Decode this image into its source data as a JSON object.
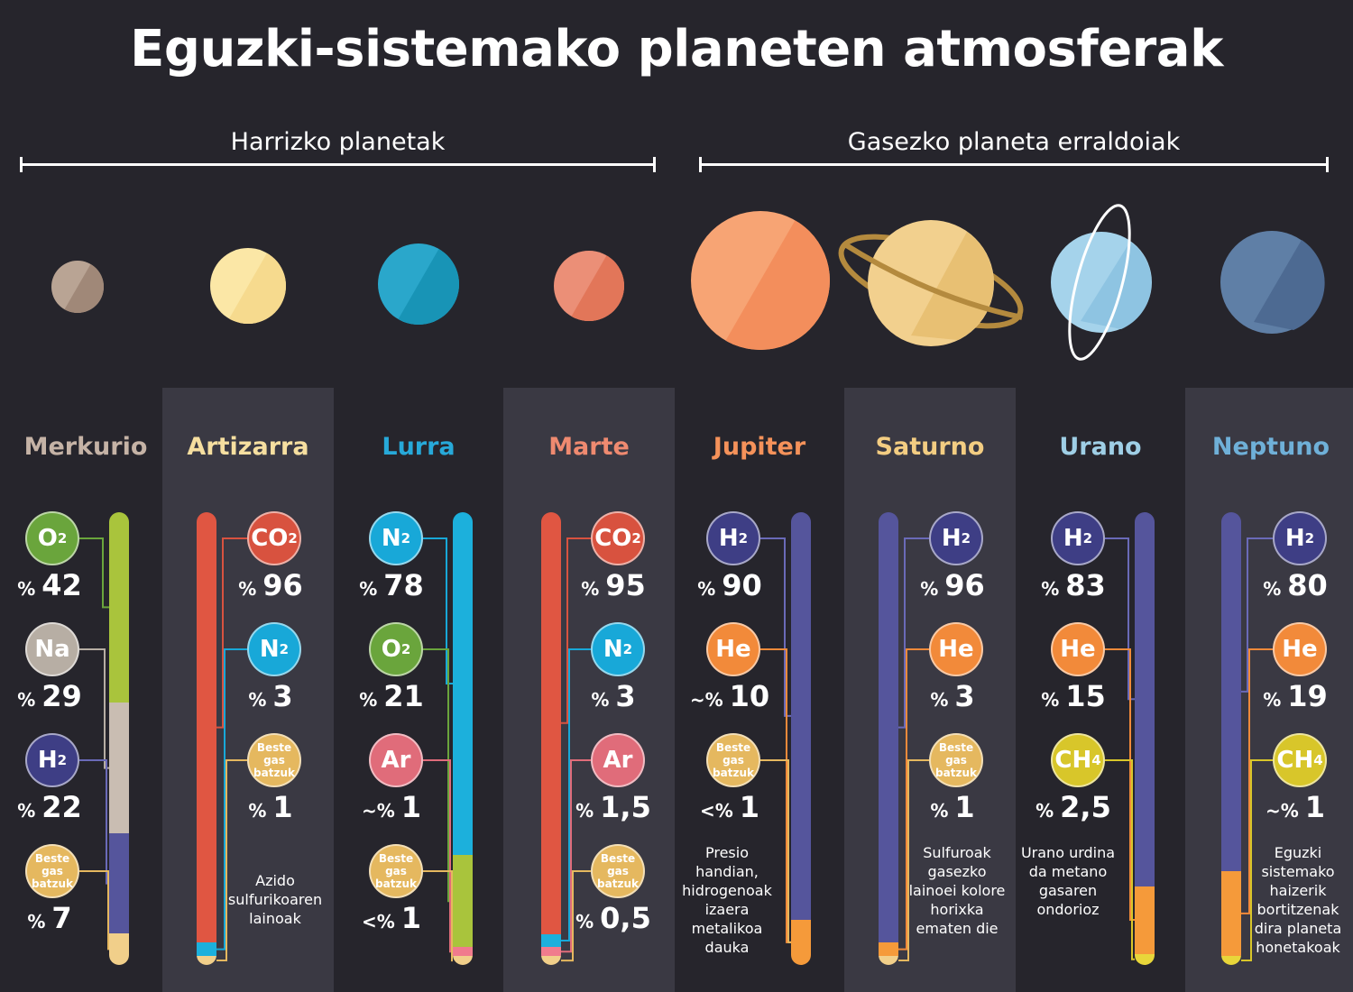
{
  "title": "Eguzki-sistemako planeten atmosferak",
  "groups": {
    "rocky": "Harrizko planetak",
    "gas": "Gasezko planeta erraldoiak"
  },
  "colors": {
    "background": "#26252c",
    "band": "#3a3943",
    "O2": "#6aa53c",
    "Na": "#b7aea4",
    "H2": "#3e3e85",
    "He": "#f28a3a",
    "CO2": "#d8523f",
    "N2": "#18a8d8",
    "Ar": "#e06c7a",
    "CH4": "#d8c62a",
    "other": "#e5b85f"
  },
  "planets": [
    {
      "name": "Merkurio",
      "name_color": "#c5b3a6",
      "gases": [
        {
          "symbol": "O",
          "sub": "2",
          "type": "O2",
          "pct": "42",
          "prefix": "%"
        },
        {
          "symbol": "Na",
          "sub": "",
          "type": "Na",
          "pct": "29",
          "prefix": "%"
        },
        {
          "symbol": "H",
          "sub": "2",
          "type": "H2",
          "pct": "22",
          "prefix": "%"
        },
        {
          "symbol": "Beste gas batzuk",
          "sub": "",
          "type": "other",
          "pct": "7",
          "prefix": "%"
        }
      ],
      "bar": [
        {
          "color": "#a9c43c",
          "v": 42
        },
        {
          "color": "#c9bdb2",
          "v": 29
        },
        {
          "color": "#55559c",
          "v": 22
        },
        {
          "color": "#f1cf8a",
          "v": 7
        }
      ],
      "note": ""
    },
    {
      "name": "Artizarra",
      "name_color": "#f6dfa0",
      "gases": [
        {
          "symbol": "CO",
          "sub": "2",
          "type": "CO2",
          "pct": "96",
          "prefix": "%"
        },
        {
          "symbol": "N",
          "sub": "2",
          "type": "N2",
          "pct": "3",
          "prefix": "%"
        },
        {
          "symbol": "Beste gas batzuk",
          "sub": "",
          "type": "other",
          "pct": "1",
          "prefix": "%"
        }
      ],
      "bar": [
        {
          "color": "#e05642",
          "v": 96
        },
        {
          "color": "#1cb0dc",
          "v": 3
        },
        {
          "color": "#f1cf8a",
          "v": 1
        }
      ],
      "note": "Azido sulfurikoaren lainoak"
    },
    {
      "name": "Lurra",
      "name_color": "#27a9d9",
      "gases": [
        {
          "symbol": "N",
          "sub": "2",
          "type": "N2",
          "pct": "78",
          "prefix": "%"
        },
        {
          "symbol": "O",
          "sub": "2",
          "type": "O2",
          "pct": "21",
          "prefix": "%"
        },
        {
          "symbol": "Ar",
          "sub": "",
          "type": "Ar",
          "pct": "1",
          "prefix": "~%"
        },
        {
          "symbol": "Beste gas batzuk",
          "sub": "",
          "type": "other",
          "pct": "1",
          "prefix": "<%"
        }
      ],
      "bar": [
        {
          "color": "#1cb0dc",
          "v": 78
        },
        {
          "color": "#a9c43c",
          "v": 21
        },
        {
          "color": "#f07b8d",
          "v": 1
        },
        {
          "color": "#f1cf8a",
          "v": 1
        }
      ],
      "note": ""
    },
    {
      "name": "Marte",
      "name_color": "#ef8a70",
      "gases": [
        {
          "symbol": "CO",
          "sub": "2",
          "type": "CO2",
          "pct": "95",
          "prefix": "%"
        },
        {
          "symbol": "N",
          "sub": "2",
          "type": "N2",
          "pct": "3",
          "prefix": "%"
        },
        {
          "symbol": "Ar",
          "sub": "",
          "type": "Ar",
          "pct": "1,5",
          "prefix": "%"
        },
        {
          "symbol": "Beste gas batzuk",
          "sub": "",
          "type": "other",
          "pct": "0,5",
          "prefix": "%"
        }
      ],
      "bar": [
        {
          "color": "#e05642",
          "v": 95
        },
        {
          "color": "#1cb0dc",
          "v": 3
        },
        {
          "color": "#f07b8d",
          "v": 1.5
        },
        {
          "color": "#f1cf8a",
          "v": 0.5
        }
      ],
      "note": ""
    },
    {
      "name": "Jupiter",
      "name_color": "#f5925a",
      "gases": [
        {
          "symbol": "H",
          "sub": "2",
          "type": "H2",
          "pct": "90",
          "prefix": "%"
        },
        {
          "symbol": "He",
          "sub": "",
          "type": "He",
          "pct": "10",
          "prefix": "~%"
        },
        {
          "symbol": "Beste gas batzuk",
          "sub": "",
          "type": "other",
          "pct": "1",
          "prefix": "<%"
        }
      ],
      "bar": [
        {
          "color": "#55559c",
          "v": 90
        },
        {
          "color": "#f59a3a",
          "v": 10
        }
      ],
      "note": "Presio handian, hidrogenoak izaera metalikoa dauka"
    },
    {
      "name": "Saturno",
      "name_color": "#f3cd82",
      "gases": [
        {
          "symbol": "H",
          "sub": "2",
          "type": "H2",
          "pct": "96",
          "prefix": "%"
        },
        {
          "symbol": "He",
          "sub": "",
          "type": "He",
          "pct": "3",
          "prefix": "%"
        },
        {
          "symbol": "Beste gas batzuk",
          "sub": "",
          "type": "other",
          "pct": "1",
          "prefix": "%"
        }
      ],
      "bar": [
        {
          "color": "#55559c",
          "v": 96
        },
        {
          "color": "#f59a3a",
          "v": 3
        },
        {
          "color": "#f1cf8a",
          "v": 1
        }
      ],
      "note": "Sulfuroak gasezko lainoei kolore horixka ematen die"
    },
    {
      "name": "Urano",
      "name_color": "#9fcfe6",
      "gases": [
        {
          "symbol": "H",
          "sub": "2",
          "type": "H2",
          "pct": "83",
          "prefix": "%"
        },
        {
          "symbol": "He",
          "sub": "",
          "type": "He",
          "pct": "15",
          "prefix": "%"
        },
        {
          "symbol": "CH",
          "sub": "4",
          "type": "CH4",
          "pct": "2,5",
          "prefix": "%"
        }
      ],
      "bar": [
        {
          "color": "#55559c",
          "v": 83
        },
        {
          "color": "#f59a3a",
          "v": 15
        },
        {
          "color": "#e8d63a",
          "v": 2.5
        }
      ],
      "note": "Urano urdina da metano gasaren ondorioz"
    },
    {
      "name": "Neptuno",
      "name_color": "#6fb0d8",
      "gases": [
        {
          "symbol": "H",
          "sub": "2",
          "type": "H2",
          "pct": "80",
          "prefix": "%"
        },
        {
          "symbol": "He",
          "sub": "",
          "type": "He",
          "pct": "19",
          "prefix": "%"
        },
        {
          "symbol": "CH",
          "sub": "4",
          "type": "CH4",
          "pct": "1",
          "prefix": "~%"
        }
      ],
      "bar": [
        {
          "color": "#55559c",
          "v": 80
        },
        {
          "color": "#f59a3a",
          "v": 19
        },
        {
          "color": "#e8d63a",
          "v": 1
        }
      ],
      "note": "Eguzki sistemako haizerik bortitzenak dira planeta honetakoak"
    }
  ]
}
